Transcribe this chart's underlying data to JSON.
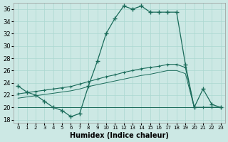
{
  "xlabel": "Humidex (Indice chaleur)",
  "bg_color": "#cce8e4",
  "line_color": "#1a6b5a",
  "grid_color": "#aad8d0",
  "xlim": [
    -0.5,
    23.5
  ],
  "ylim": [
    17.5,
    37.0
  ],
  "xticks": [
    0,
    1,
    2,
    3,
    4,
    5,
    6,
    7,
    8,
    9,
    10,
    11,
    12,
    13,
    14,
    15,
    16,
    17,
    18,
    19,
    20,
    21,
    22,
    23
  ],
  "yticks": [
    18,
    20,
    22,
    24,
    26,
    28,
    30,
    32,
    34,
    36
  ],
  "line1_x": [
    0,
    1,
    2,
    3,
    4,
    5,
    6,
    7,
    8,
    9,
    10,
    11,
    12,
    13,
    14,
    15,
    16,
    17,
    18,
    19,
    20,
    21,
    22,
    23
  ],
  "line1_y": [
    23.5,
    22.5,
    22.0,
    21.0,
    20.0,
    19.5,
    18.5,
    19.0,
    23.5,
    27.5,
    32.0,
    34.5,
    36.5,
    36.0,
    36.5,
    35.5,
    35.5,
    35.5,
    35.5,
    27.0,
    20.0,
    23.0,
    20.5,
    20.0
  ],
  "line2_x": [
    0,
    1,
    2,
    3,
    4,
    5,
    6,
    7,
    8,
    9,
    10,
    11,
    12,
    13,
    14,
    15,
    16,
    17,
    18,
    19,
    20,
    21,
    22,
    23
  ],
  "line2_y": [
    22.2,
    22.4,
    22.6,
    22.8,
    23.0,
    23.2,
    23.4,
    23.8,
    24.2,
    24.6,
    25.0,
    25.3,
    25.7,
    26.0,
    26.3,
    26.5,
    26.7,
    27.0,
    27.0,
    26.5,
    20.0,
    20.0,
    20.0,
    20.0
  ],
  "line3_x": [
    0,
    1,
    2,
    3,
    4,
    5,
    6,
    7,
    8,
    9,
    10,
    11,
    12,
    13,
    14,
    15,
    16,
    17,
    18,
    19,
    20,
    21,
    22,
    23
  ],
  "line3_y": [
    20.0,
    20.0,
    20.0,
    20.0,
    20.0,
    20.0,
    20.0,
    20.0,
    20.0,
    20.0,
    20.0,
    20.0,
    20.0,
    20.0,
    20.0,
    20.0,
    20.0,
    20.0,
    20.0,
    20.0,
    20.0,
    20.0,
    20.0,
    20.0
  ],
  "line4_x": [
    0,
    1,
    2,
    3,
    4,
    5,
    6,
    7,
    8,
    9,
    10,
    11,
    12,
    13,
    14,
    15,
    16,
    17,
    18,
    19,
    20,
    21,
    22,
    23
  ],
  "line4_y": [
    21.5,
    21.7,
    21.9,
    22.1,
    22.3,
    22.5,
    22.7,
    23.0,
    23.4,
    23.7,
    24.0,
    24.3,
    24.6,
    24.9,
    25.2,
    25.4,
    25.7,
    26.0,
    26.0,
    25.5,
    20.0,
    20.0,
    20.0,
    20.0
  ]
}
